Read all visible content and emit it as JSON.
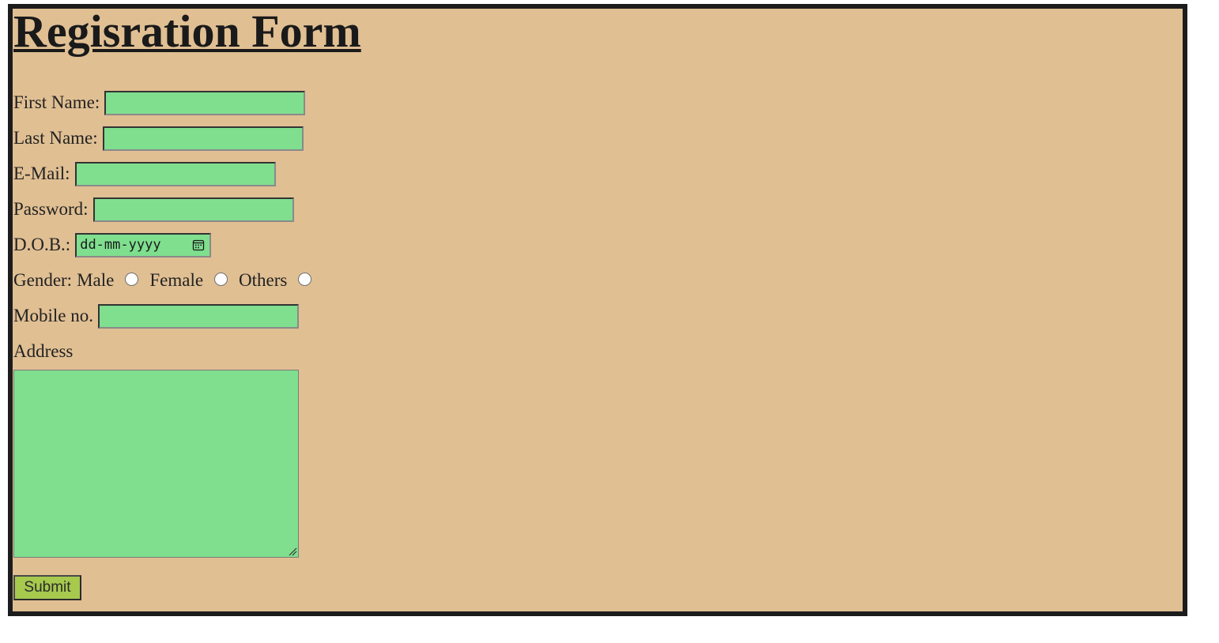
{
  "form": {
    "title": "Regisration Form",
    "fields": {
      "first_name": {
        "label": "First Name:",
        "value": ""
      },
      "last_name": {
        "label": "Last Name:",
        "value": ""
      },
      "email": {
        "label": "E-Mail:",
        "value": ""
      },
      "password": {
        "label": "Password:",
        "value": ""
      },
      "dob": {
        "label": "D.O.B.:",
        "placeholder": "dd-mm-yyyy",
        "icon": "calendar-icon"
      },
      "gender": {
        "label": "Gender:",
        "options": [
          {
            "label": "Male",
            "selected": false
          },
          {
            "label": "Female",
            "selected": false
          },
          {
            "label": "Others",
            "selected": false
          }
        ]
      },
      "mobile": {
        "label": "Mobile no.",
        "value": ""
      },
      "address": {
        "label": "Address",
        "value": ""
      }
    },
    "submit_label": "Submit"
  },
  "colors": {
    "page_background": "#e0bf93",
    "field_background": "#7fdf8e",
    "button_background": "#a6c94e",
    "frame_border": "#1c1c1c"
  }
}
